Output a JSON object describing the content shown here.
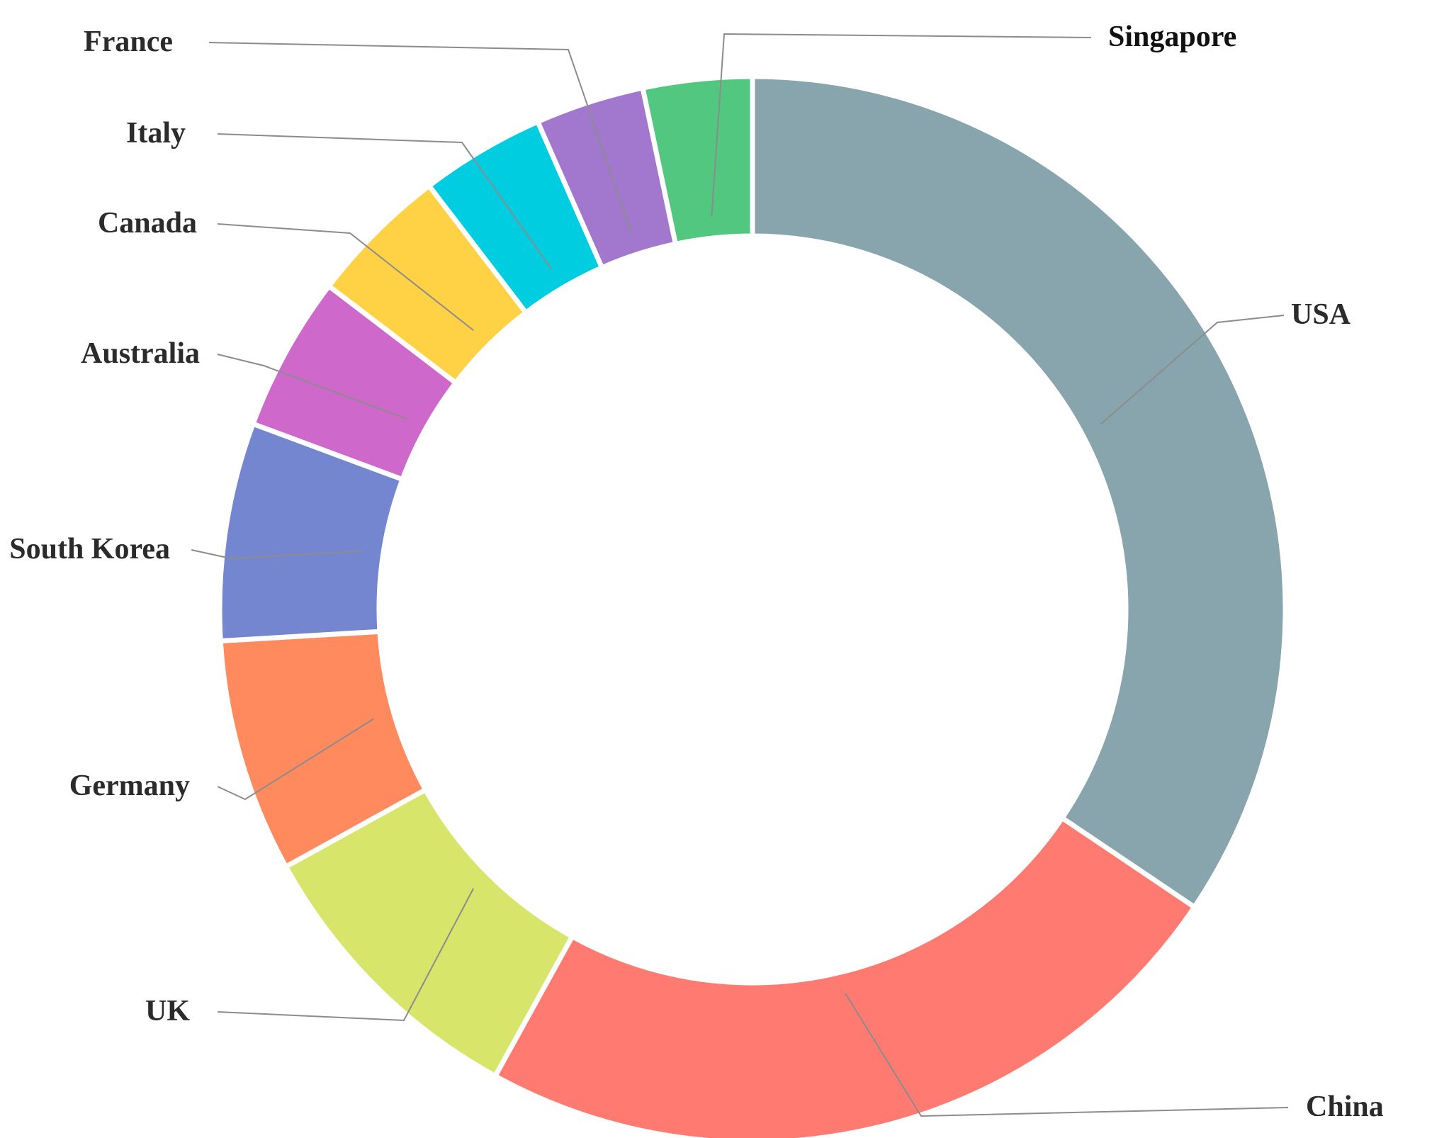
{
  "chart_data": {
    "type": "pie",
    "subtype": "donut",
    "legend": "none",
    "categories": [
      "USA",
      "China",
      "UK",
      "Germany",
      "South Korea",
      "Australia",
      "Canada",
      "Italy",
      "France",
      "Singapore"
    ],
    "values": [
      36.5,
      25.0,
      9.5,
      7.5,
      7.0,
      5.0,
      4.5,
      4.0,
      3.5,
      3.5
    ],
    "colors": [
      "#88a5ae",
      "#ff7b72",
      "#d8e56b",
      "#ff8a5e",
      "#7586d0",
      "#cf68cb",
      "#ffd245",
      "#00cddf",
      "#a278cf",
      "#52c77f"
    ],
    "title": ""
  }
}
